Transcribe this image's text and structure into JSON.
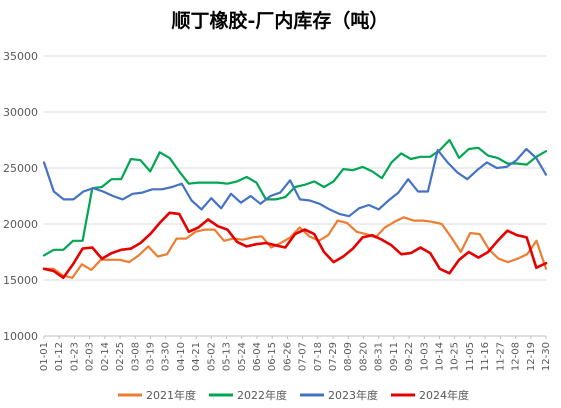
{
  "chart_data": {
    "type": "line",
    "title": "顺丁橡胶-厂内库存（吨）",
    "xlabel": "",
    "ylabel": "",
    "ylim": [
      10000,
      35000
    ],
    "y_ticks": [
      10000,
      15000,
      20000,
      25000,
      30000,
      35000
    ],
    "grid": true,
    "legend_position": "bottom",
    "x_tick_labels": [
      "01-01",
      "01-12",
      "01-23",
      "02-03",
      "02-14",
      "02-25",
      "03-08",
      "03-19",
      "03-30",
      "04-10",
      "04-21",
      "05-02",
      "05-13",
      "05-24",
      "06-04",
      "06-15",
      "06-26",
      "07-07",
      "07-18",
      "07-29",
      "08-09",
      "08-20",
      "08-31",
      "09-11",
      "09-22",
      "10-03",
      "10-14",
      "10-25",
      "11-05",
      "11-16",
      "11-27",
      "12-08",
      "12-19",
      "12-30"
    ],
    "series": [
      {
        "name": "2021年度",
        "color": "#ED7D31",
        "values": [
          16000,
          16000,
          15400,
          15200,
          16400,
          15900,
          16800,
          16800,
          16800,
          16600,
          17200,
          18000,
          17100,
          17300,
          18700,
          18700,
          19300,
          19500,
          19500,
          18500,
          18700,
          18600,
          18800,
          18900,
          17900,
          18300,
          18800,
          19700,
          18900,
          18500,
          19000,
          20300,
          20100,
          19300,
          19100,
          18800,
          19700,
          20200,
          20600,
          20300,
          20300,
          20200,
          20000,
          18800,
          17500,
          19200,
          19100,
          17700,
          16900,
          16600,
          16900,
          17300,
          18500,
          16000
        ]
      },
      {
        "name": "2022年度",
        "color": "#00A651",
        "values": [
          17200,
          17700,
          17700,
          18500,
          18500,
          23200,
          23300,
          24000,
          24000,
          25800,
          25700,
          24700,
          26400,
          25900,
          24700,
          23600,
          23700,
          23700,
          23700,
          23600,
          23800,
          24200,
          23700,
          22200,
          22200,
          22400,
          23300,
          23500,
          23800,
          23300,
          23800,
          24900,
          24800,
          25100,
          24700,
          24100,
          25500,
          26300,
          25800,
          26000,
          26000,
          26600,
          27500,
          25900,
          26700,
          26800,
          26100,
          25900,
          25400,
          25400,
          25300,
          26000,
          26500
        ]
      },
      {
        "name": "2023年度",
        "color": "#4472C4",
        "values": [
          25500,
          22900,
          22200,
          22200,
          22900,
          23200,
          22900,
          22500,
          22200,
          22700,
          22800,
          23100,
          23100,
          23300,
          23600,
          22100,
          21300,
          22300,
          21400,
          22700,
          21900,
          22500,
          21800,
          22500,
          22800,
          23900,
          22200,
          22100,
          21800,
          21300,
          20900,
          20700,
          21400,
          21700,
          21300,
          22100,
          22800,
          24000,
          22900,
          22900,
          26600,
          25500,
          24600,
          24000,
          24800,
          25500,
          25000,
          25100,
          25700,
          26700,
          25900,
          24400
        ]
      },
      {
        "name": "2024年度",
        "color": "#E60000",
        "values": [
          16000,
          15800,
          15200,
          16400,
          17800,
          17900,
          16900,
          17400,
          17700,
          17800,
          18300,
          19100,
          20100,
          21000,
          20900,
          19300,
          19700,
          20400,
          19800,
          19500,
          18400,
          18000,
          18200,
          18300,
          18100,
          17900,
          19100,
          19500,
          19100,
          17500,
          16600,
          17100,
          17800,
          18800,
          19000,
          18600,
          18100,
          17300,
          17400,
          17900,
          17400,
          16000,
          15600,
          16800,
          17500,
          17000,
          17500,
          18500,
          19400,
          19000,
          18800,
          16100,
          16500
        ]
      }
    ]
  }
}
